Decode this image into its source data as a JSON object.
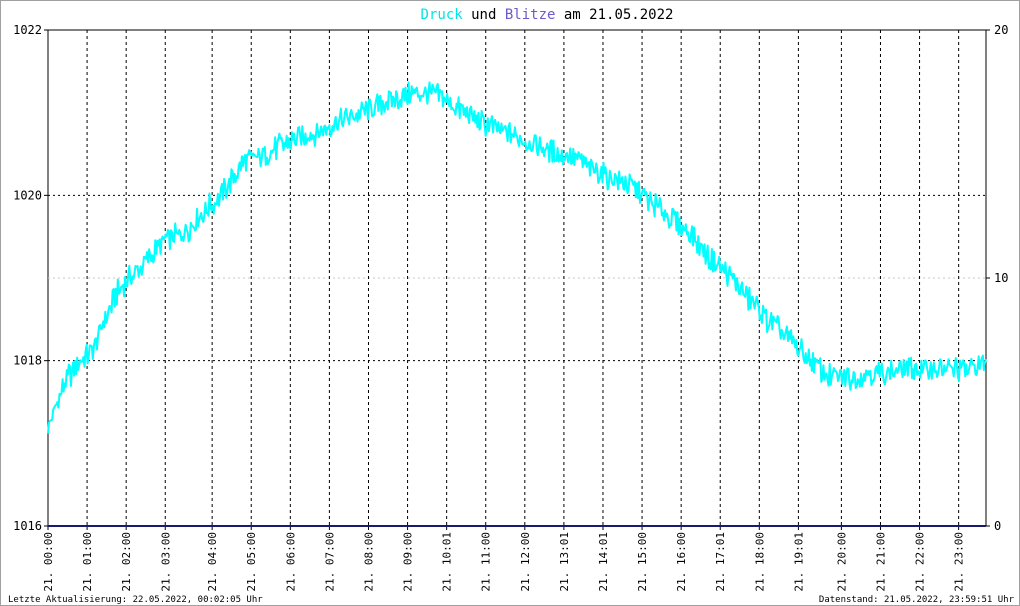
{
  "title": {
    "part1": "Druck",
    "part2": " und ",
    "part3": "Blitze",
    "part4": " am 21.05.2022",
    "color_druck": "#00e5e5",
    "color_blitze": "#6a5acd",
    "color_text": "#000000"
  },
  "footer": {
    "left": "Letzte Aktualisierung: 22.05.2022, 00:02:05 Uhr",
    "right": "Datenstand: 21.05.2022, 23:59:51 Uhr"
  },
  "chart_data": {
    "type": "line",
    "title": "Druck und Blitze am 21.05.2022",
    "y_left": {
      "min": 1016,
      "max": 1022,
      "ticks": [
        1016,
        1018,
        1020,
        1022
      ]
    },
    "y_right": {
      "min": 0,
      "max": 20,
      "ticks": [
        0,
        10,
        20
      ]
    },
    "x_range_hours": [
      0,
      24
    ],
    "x_tick_labels": [
      {
        "hour": 0.0,
        "label": "21. 00:00"
      },
      {
        "hour": 1.0,
        "label": "21. 01:00"
      },
      {
        "hour": 2.0,
        "label": "21. 02:00"
      },
      {
        "hour": 3.0,
        "label": "21. 03:00"
      },
      {
        "hour": 4.2,
        "label": "21. 04:00"
      },
      {
        "hour": 5.2,
        "label": "21. 05:00"
      },
      {
        "hour": 6.2,
        "label": "21. 06:00"
      },
      {
        "hour": 7.2,
        "label": "21. 07:00"
      },
      {
        "hour": 8.2,
        "label": "21. 08:00"
      },
      {
        "hour": 9.2,
        "label": "21. 09:00"
      },
      {
        "hour": 10.2,
        "label": "21. 10:01"
      },
      {
        "hour": 11.2,
        "label": "21. 11:00"
      },
      {
        "hour": 12.2,
        "label": "21. 12:00"
      },
      {
        "hour": 13.2,
        "label": "21. 13:01"
      },
      {
        "hour": 14.2,
        "label": "21. 14:01"
      },
      {
        "hour": 15.2,
        "label": "21. 15:00"
      },
      {
        "hour": 16.2,
        "label": "21. 16:00"
      },
      {
        "hour": 17.2,
        "label": "21. 17:01"
      },
      {
        "hour": 18.2,
        "label": "21. 18:00"
      },
      {
        "hour": 19.2,
        "label": "21. 19:01"
      },
      {
        "hour": 20.3,
        "label": "21. 20:00"
      },
      {
        "hour": 21.3,
        "label": "21. 21:00"
      },
      {
        "hour": 22.3,
        "label": "21. 22:00"
      },
      {
        "hour": 23.3,
        "label": "21. 23:00"
      }
    ],
    "grid": true,
    "series": [
      {
        "name": "Druck",
        "axis": "left",
        "color": "#00ffff",
        "x_hours": [
          0,
          0.25,
          0.5,
          0.75,
          1.0,
          1.25,
          1.5,
          1.75,
          2.0,
          2.5,
          3.0,
          3.5,
          4.0,
          4.5,
          5.0,
          5.5,
          6.0,
          6.5,
          7.0,
          7.5,
          8.0,
          8.5,
          9.0,
          9.5,
          10.0,
          10.5,
          11.0,
          11.5,
          12.0,
          12.5,
          13.0,
          13.5,
          14.0,
          14.5,
          15.0,
          15.5,
          16.0,
          16.5,
          17.0,
          17.5,
          18.0,
          18.5,
          19.0,
          19.5,
          20.0,
          20.5,
          21.0,
          21.5,
          22.0,
          22.5,
          23.0,
          23.5,
          24.0
        ],
        "values": [
          1017.2,
          1017.5,
          1017.8,
          1017.95,
          1018.05,
          1018.25,
          1018.55,
          1018.8,
          1018.95,
          1019.2,
          1019.45,
          1019.55,
          1019.8,
          1020.05,
          1020.4,
          1020.5,
          1020.6,
          1020.7,
          1020.8,
          1020.9,
          1021.0,
          1021.1,
          1021.2,
          1021.25,
          1021.2,
          1021.05,
          1020.9,
          1020.8,
          1020.7,
          1020.6,
          1020.5,
          1020.45,
          1020.3,
          1020.2,
          1020.1,
          1019.9,
          1019.7,
          1019.5,
          1019.2,
          1019.0,
          1018.7,
          1018.45,
          1018.25,
          1018.0,
          1017.8,
          1017.8,
          1017.85,
          1017.85,
          1017.9,
          1017.9,
          1017.9,
          1017.9,
          1018.0
        ]
      },
      {
        "name": "Blitze",
        "axis": "right",
        "color": "#191970",
        "x_hours": [
          0,
          24
        ],
        "values": [
          0,
          0
        ]
      }
    ]
  }
}
